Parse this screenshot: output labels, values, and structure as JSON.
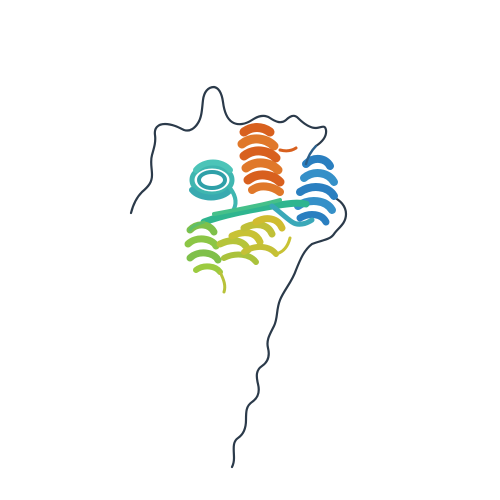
{
  "image": {
    "subject": "protein-ribbon-structure",
    "background": "#ffffff",
    "palette": {
      "coil": "#2b3a4a",
      "blue": "#2a7fc0",
      "cyan": "#3fb6b0",
      "teal": "#2fb58f",
      "green": "#7fc04a",
      "yellow": "#c8c234",
      "orange": "#e0782a",
      "deep_orange": "#d8601e"
    }
  }
}
